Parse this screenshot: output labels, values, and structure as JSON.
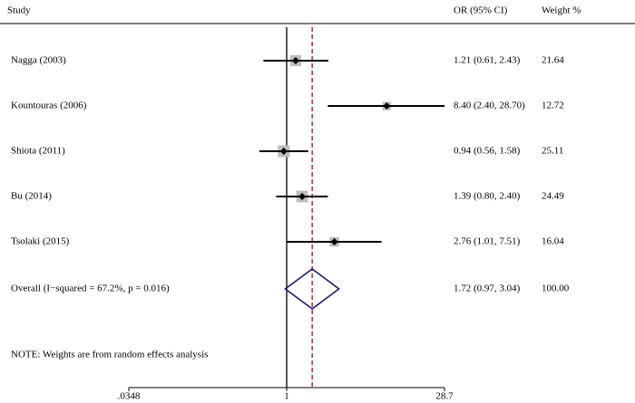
{
  "chart_data": {
    "type": "forest",
    "headers": {
      "study": "Study",
      "ci": "OR (95% CI)",
      "weight": "Weight  %"
    },
    "studies": [
      "Nagga (2003)",
      "Kountouras (2006)",
      "Shiota (2011)",
      "Bu (2014)",
      "Tsolaki (2015)"
    ],
    "or": [
      1.21,
      8.4,
      0.94,
      1.39,
      2.76
    ],
    "lower": [
      0.61,
      2.4,
      0.56,
      0.8,
      1.01
    ],
    "upper": [
      2.43,
      28.7,
      1.58,
      2.4,
      7.51
    ],
    "ci_labels": [
      "1.21 (0.61, 2.43)",
      "8.40 (2.40, 28.70)",
      "0.94 (0.56, 1.58)",
      "1.39 (0.80, 2.40)",
      "2.76 (1.01, 7.51)"
    ],
    "weights": [
      21.64,
      12.72,
      25.11,
      24.49,
      16.04
    ],
    "overall": {
      "label": "Overall  (I−squared = 67.2%, p = 0.016)",
      "or": 1.72,
      "lower": 0.97,
      "upper": 3.04,
      "ci_label": "1.72 (0.97, 3.04)",
      "weight": 100,
      "weight_label": "100.00"
    },
    "note": "NOTE: Weights are from random effects analysis",
    "log_scale": true,
    "null_value": 1,
    "xlim": [
      0.0348,
      28.7
    ],
    "xticks": [
      {
        "value": 0.0348,
        "label": ".0348"
      },
      1,
      28.7
    ],
    "box_color": "#bdbdbd",
    "diamond_color": "#1a1a80",
    "ref_line_color": "#8b1a1a"
  }
}
